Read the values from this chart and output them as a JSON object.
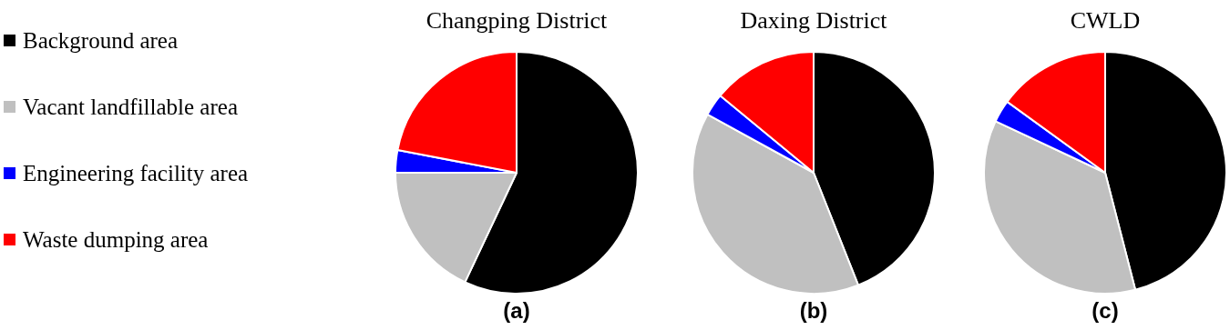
{
  "chart_data": [
    {
      "type": "pie",
      "title": "Changping District",
      "categories": [
        "Background area",
        "Vacant landfillable area",
        "Engineering facility area",
        "Waste dumping area"
      ],
      "values": [
        57,
        18,
        3,
        22
      ],
      "colors": [
        "#000000",
        "#c0c0c0",
        "#0000ff",
        "#ff0000"
      ],
      "legend": "left",
      "annotations": [
        "(a)"
      ]
    },
    {
      "type": "pie",
      "title": "Daxing District",
      "categories": [
        null,
        null,
        null,
        null
      ],
      "values": [
        44,
        39,
        3,
        14
      ],
      "colors": [
        "#000000",
        "#c0c0c0",
        "#0000ff",
        "#ff0000"
      ],
      "annotations": [
        "(b)"
      ]
    },
    {
      "type": "pie",
      "title": "CWLD",
      "categories": [
        null,
        null,
        null,
        null
      ],
      "values": [
        46,
        36,
        3,
        15
      ],
      "colors": [
        "#000000",
        "#c0c0c0",
        "#0000ff",
        "#ff0000"
      ],
      "annotations": [
        "(c)"
      ]
    }
  ]
}
